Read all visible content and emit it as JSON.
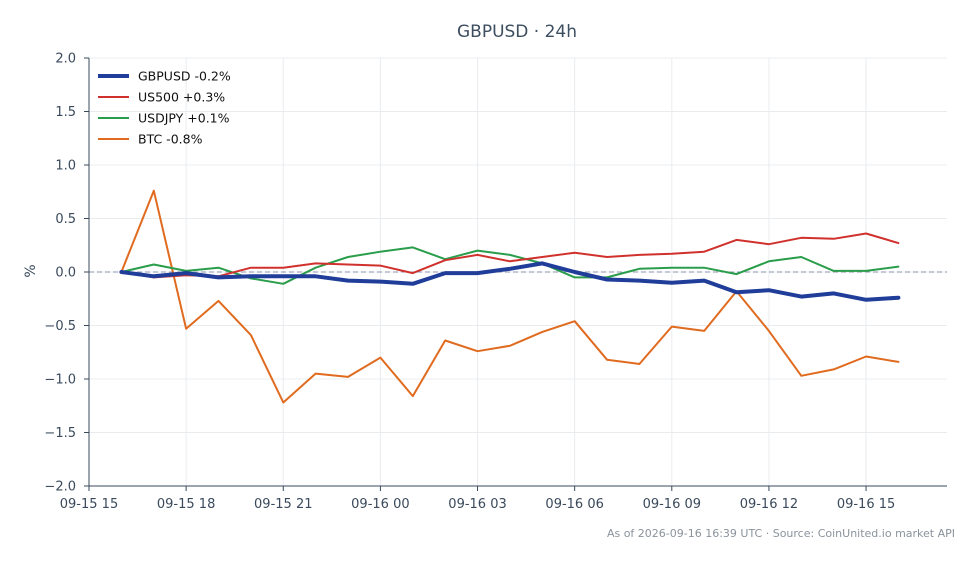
{
  "chart_data": {
    "type": "line",
    "title": "GBPUSD · 24h",
    "xlabel": "",
    "ylabel": "%",
    "ylim": [
      -2.0,
      2.0
    ],
    "y_ticks": [
      "−2.0",
      "−1.5",
      "−1.0",
      "−0.5",
      "0.0",
      "0.5",
      "1.0",
      "1.5",
      "2.0"
    ],
    "x_ticks": [
      "09-15 15",
      "09-15 18",
      "09-15 21",
      "09-16 00",
      "09-16 03",
      "09-16 06",
      "09-16 09",
      "09-16 12",
      "09-16 15"
    ],
    "x": [
      "09-15 16",
      "09-15 17",
      "09-15 18",
      "09-15 19",
      "09-15 20",
      "09-15 21",
      "09-15 22",
      "09-15 23",
      "09-16 00",
      "09-16 01",
      "09-16 02",
      "09-16 03",
      "09-16 04",
      "09-16 05",
      "09-16 06",
      "09-16 07",
      "09-16 08",
      "09-16 09",
      "09-16 10",
      "09-16 11",
      "09-16 12",
      "09-16 13",
      "09-16 14",
      "09-16 15",
      "09-16 16"
    ],
    "baseline": 0.0,
    "grid": true,
    "legend_position": "top-left",
    "series": [
      {
        "name": "GBPUSD -0.2%",
        "color": "#1f3d99",
        "values": [
          0.0,
          -0.04,
          -0.01,
          -0.05,
          -0.04,
          -0.04,
          -0.04,
          -0.08,
          -0.09,
          -0.11,
          -0.01,
          -0.01,
          0.03,
          0.08,
          0.0,
          -0.07,
          -0.08,
          -0.1,
          -0.08,
          -0.19,
          -0.17,
          -0.23,
          -0.2,
          -0.26,
          -0.24
        ]
      },
      {
        "name": "US500 +0.3%",
        "color": "#d0312d",
        "values": [
          0.0,
          -0.05,
          -0.03,
          -0.04,
          0.04,
          0.04,
          0.08,
          0.07,
          0.06,
          -0.01,
          0.11,
          0.16,
          0.1,
          0.14,
          0.18,
          0.14,
          0.16,
          0.17,
          0.19,
          0.3,
          0.26,
          0.32,
          0.31,
          0.36,
          0.27
        ]
      },
      {
        "name": "USDJPY +0.1%",
        "color": "#2a9d4b",
        "values": [
          0.0,
          0.07,
          0.01,
          0.04,
          -0.06,
          -0.11,
          0.04,
          0.14,
          0.19,
          0.23,
          0.12,
          0.2,
          0.16,
          0.08,
          -0.05,
          -0.05,
          0.03,
          0.04,
          0.04,
          -0.02,
          0.1,
          0.14,
          0.01,
          0.01,
          0.05
        ]
      },
      {
        "name": "BTC -0.8%",
        "color": "#e06b1f",
        "values": [
          0.0,
          0.76,
          -0.53,
          -0.27,
          -0.59,
          -1.22,
          -0.95,
          -0.98,
          -0.8,
          -1.16,
          -0.64,
          -0.74,
          -0.69,
          -0.56,
          -0.46,
          -0.82,
          -0.86,
          -0.51,
          -0.55,
          -0.18,
          -0.55,
          -0.97,
          -0.91,
          -0.79,
          -0.84
        ]
      }
    ],
    "footer": "As of 2026-09-16 16:39 UTC · Source: CoinUnited.io market API"
  }
}
